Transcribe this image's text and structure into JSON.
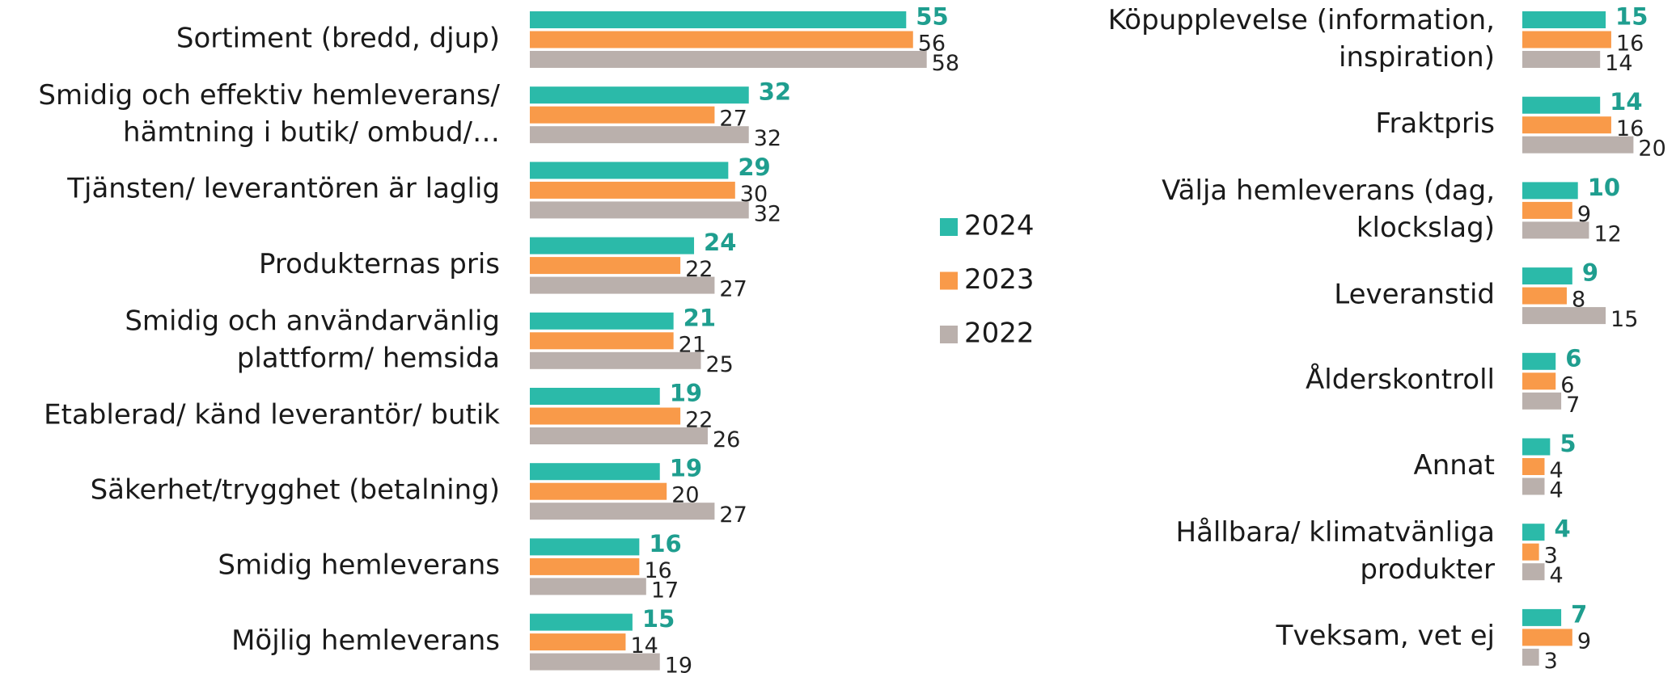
{
  "chart_data": [
    {
      "type": "barh",
      "categories": [
        "Sortiment (bredd, djup)",
        "Smidig och effektiv hemleverans/\nhämtning i butik/ ombud/…",
        "Tjänsten/ leverantören är laglig",
        "Produkternas pris",
        "Smidig och användarvänlig\nplattform/ hemsida",
        "Etablerad/ känd leverantör/ butik",
        "Säkerhet/trygghet (betalning)",
        "Smidig hemleverans",
        "Möjlig hemleverans"
      ],
      "series": [
        {
          "name": "2024",
          "color": "#2bbaa9",
          "values": [
            55,
            32,
            29,
            24,
            21,
            19,
            19,
            16,
            15
          ]
        },
        {
          "name": "2023",
          "color": "#f99a49",
          "values": [
            56,
            27,
            30,
            22,
            21,
            22,
            20,
            16,
            14
          ]
        },
        {
          "name": "2022",
          "color": "#bab0ac",
          "values": [
            58,
            32,
            32,
            27,
            25,
            26,
            27,
            17,
            19
          ]
        }
      ],
      "xlim": [
        0,
        100
      ],
      "legend": "right"
    },
    {
      "type": "barh",
      "categories": [
        "Köpupplevelse (information,\ninspiration)",
        "Fraktpris",
        "Välja hemleverans (dag,\nklockslag)",
        "Leveranstid",
        "Ålderskontroll",
        "Annat",
        "Hållbara/ klimatvänliga\nprodukter",
        "Tveksam, vet ej"
      ],
      "series": [
        {
          "color": "#2bbaa9",
          "values": [
            15,
            14,
            10,
            9,
            6,
            5,
            4,
            7
          ]
        },
        {
          "color": "#f99a49",
          "values": [
            16,
            16,
            9,
            8,
            6,
            4,
            3,
            9
          ]
        },
        {
          "color": "#bab0ac",
          "values": [
            14,
            20,
            12,
            15,
            7,
            4,
            4,
            3
          ]
        }
      ],
      "xlim": [
        0,
        100
      ]
    }
  ]
}
